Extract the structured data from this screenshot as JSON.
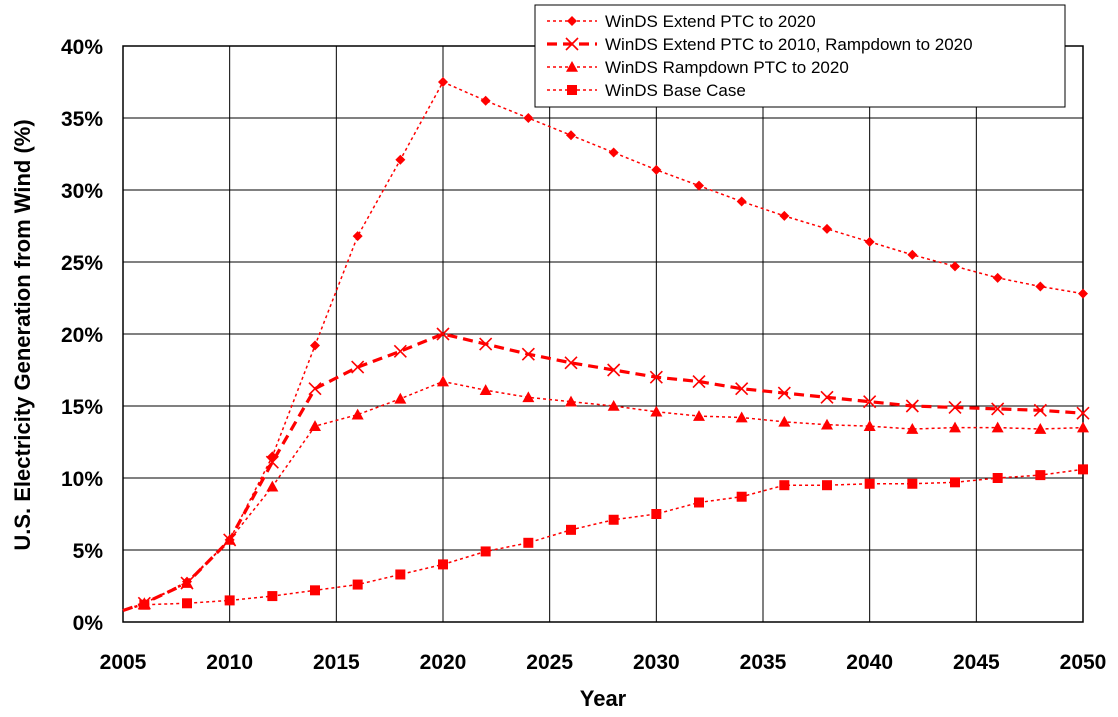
{
  "chart_data": {
    "type": "line",
    "title": "",
    "xlabel": "Year",
    "ylabel": "U.S. Electricity Generation from Wind (%)",
    "xlim": [
      2005,
      2050
    ],
    "ylim": [
      0,
      40
    ],
    "x_ticks": [
      "2005",
      "2010",
      "2015",
      "2020",
      "2025",
      "2030",
      "2035",
      "2040",
      "2045",
      "2050"
    ],
    "y_ticks": [
      "0%",
      "5%",
      "10%",
      "15%",
      "20%",
      "25%",
      "30%",
      "35%",
      "40%"
    ],
    "grid": true,
    "legend_position": "top-right",
    "series_color": "#ff0000",
    "series": [
      {
        "name": "WinDS Extend PTC to 2020",
        "marker": "diamond",
        "line": "dotted",
        "x": [
          2005,
          2006,
          2008,
          2010,
          2012,
          2014,
          2016,
          2018,
          2020,
          2022,
          2024,
          2026,
          2028,
          2030,
          2032,
          2034,
          2036,
          2038,
          2040,
          2042,
          2044,
          2046,
          2048,
          2050
        ],
        "y": [
          0.8,
          1.3,
          2.8,
          5.7,
          11.5,
          19.2,
          26.8,
          32.1,
          37.5,
          36.2,
          35.0,
          33.8,
          32.6,
          31.4,
          30.3,
          29.2,
          28.2,
          27.3,
          26.4,
          25.5,
          24.7,
          23.9,
          23.3,
          22.8
        ]
      },
      {
        "name": "WinDS Extend PTC to 2010, Rampdown to 2020",
        "marker": "x",
        "line": "dashed",
        "x": [
          2005,
          2006,
          2008,
          2010,
          2012,
          2014,
          2016,
          2018,
          2020,
          2022,
          2024,
          2026,
          2028,
          2030,
          2032,
          2034,
          2036,
          2038,
          2040,
          2042,
          2044,
          2046,
          2048,
          2050
        ],
        "y": [
          0.8,
          1.3,
          2.7,
          5.7,
          11.1,
          16.2,
          17.7,
          18.8,
          20.0,
          19.3,
          18.6,
          18.0,
          17.5,
          17.0,
          16.7,
          16.2,
          15.9,
          15.6,
          15.3,
          15.0,
          14.9,
          14.8,
          14.7,
          14.5
        ]
      },
      {
        "name": "WinDS Rampdown PTC to 2020",
        "marker": "triangle",
        "line": "dotted",
        "x": [
          2005,
          2006,
          2008,
          2010,
          2012,
          2014,
          2016,
          2018,
          2020,
          2022,
          2024,
          2026,
          2028,
          2030,
          2032,
          2034,
          2036,
          2038,
          2040,
          2042,
          2044,
          2046,
          2048,
          2050
        ],
        "y": [
          0.8,
          1.3,
          2.7,
          5.7,
          9.4,
          13.6,
          14.4,
          15.5,
          16.7,
          16.1,
          15.6,
          15.3,
          15.0,
          14.6,
          14.3,
          14.2,
          13.9,
          13.7,
          13.6,
          13.4,
          13.5,
          13.5,
          13.4,
          13.5
        ]
      },
      {
        "name": "WinDS Base Case",
        "marker": "square",
        "line": "dotted",
        "x": [
          2005,
          2006,
          2008,
          2010,
          2012,
          2014,
          2016,
          2018,
          2020,
          2022,
          2024,
          2026,
          2028,
          2030,
          2032,
          2034,
          2036,
          2038,
          2040,
          2042,
          2044,
          2046,
          2048,
          2050
        ],
        "y": [
          0.8,
          1.2,
          1.3,
          1.5,
          1.8,
          2.2,
          2.6,
          3.3,
          4.0,
          4.9,
          5.5,
          6.4,
          7.1,
          7.5,
          8.3,
          8.7,
          9.5,
          9.5,
          9.6,
          9.6,
          9.7,
          10.0,
          10.2,
          10.6
        ]
      }
    ]
  }
}
